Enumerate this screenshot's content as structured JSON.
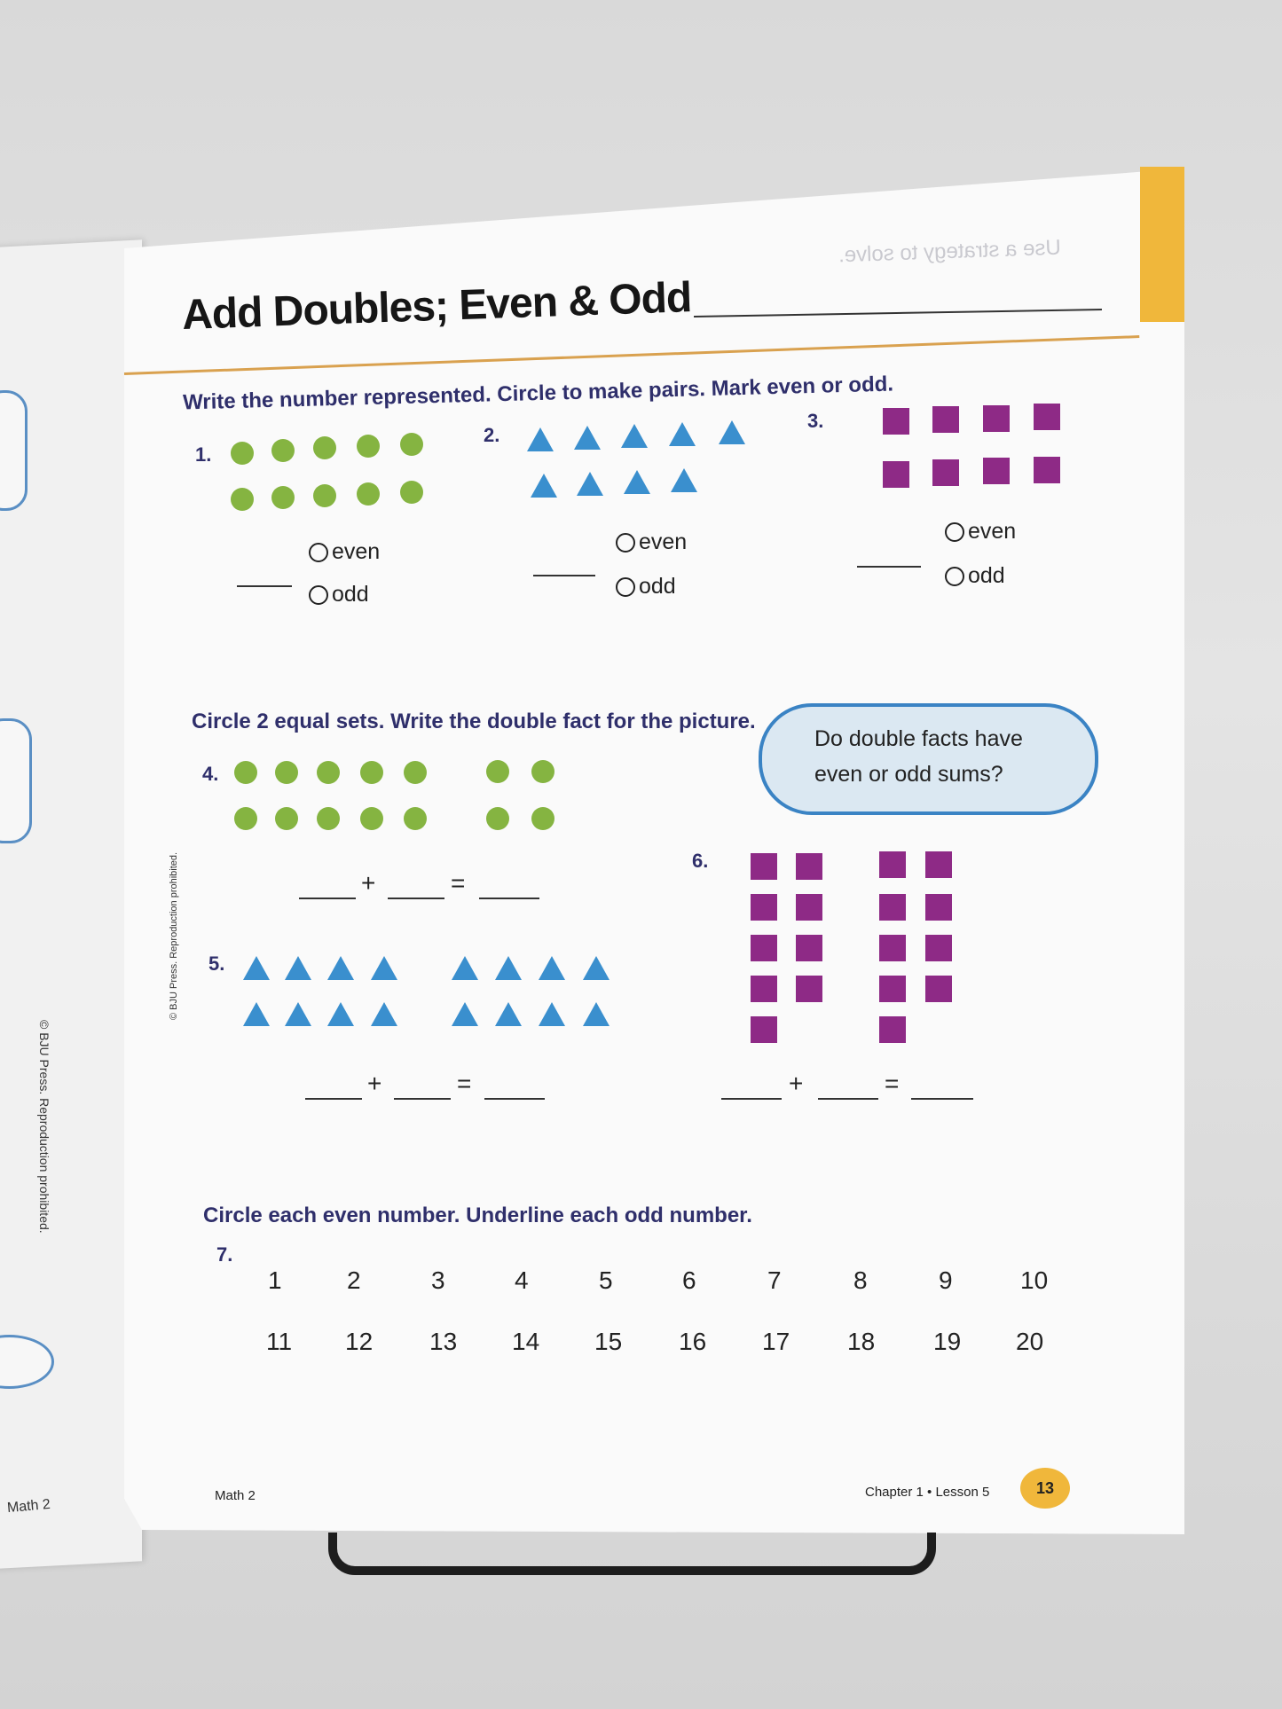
{
  "left_page": {
    "copyright": "© BJU Press. Reproduction prohibited.",
    "footer": "Math 2"
  },
  "header": {
    "title": "Add Doubles; Even & Odd",
    "faded_text": "Use a strategy to solve."
  },
  "section1": {
    "instruction": "Write the number represented. Circle to make pairs. Mark even or odd.",
    "problems": [
      {
        "number": "1.",
        "even": "even",
        "odd": "odd"
      },
      {
        "number": "2.",
        "even": "even",
        "odd": "odd"
      },
      {
        "number": "3.",
        "even": "even",
        "odd": "odd"
      }
    ]
  },
  "section2": {
    "instruction": "Circle 2 equal sets. Write the double fact for the picture.",
    "cloud": {
      "line1": "Do double facts have",
      "line2": "even or odd sums?"
    },
    "problems": [
      "4.",
      "5.",
      "6."
    ],
    "plus": "+",
    "equals": "="
  },
  "section3": {
    "instruction": "Circle each even number. Underline each odd number.",
    "number": "7.",
    "row1": [
      "1",
      "2",
      "3",
      "4",
      "5",
      "6",
      "7",
      "8",
      "9",
      "10"
    ],
    "row2": [
      "11",
      "12",
      "13",
      "14",
      "15",
      "16",
      "17",
      "18",
      "19",
      "20"
    ]
  },
  "footer": {
    "left": "Math 2",
    "right": "Chapter 1 • Lesson 5",
    "page": "13",
    "copyright": "© BJU Press. Reproduction prohibited."
  },
  "colors": {
    "green_dot": "#85b441",
    "blue_triangle": "#3a8fce",
    "purple_square": "#8e2a86",
    "accent": "#f0b73b"
  }
}
